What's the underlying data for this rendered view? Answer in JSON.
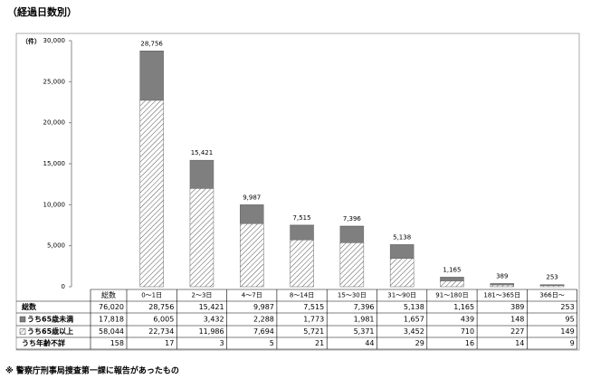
{
  "title": "（経過日数別）",
  "footnote": "※ 警察庁刑事局捜査第一課に報告があったもの",
  "chart_data": {
    "type": "bar",
    "stacked": true,
    "y_unit": "（件）",
    "categories": [
      "0～1日",
      "2～3日",
      "4～7日",
      "8～14日",
      "15～30日",
      "31～90日",
      "91～180日",
      "181～365日",
      "366日～"
    ],
    "total_column": "総数",
    "totals": {
      "name": "総数",
      "values": [
        28756,
        15421,
        9987,
        7515,
        7396,
        5138,
        1165,
        389,
        253
      ],
      "value_labels": [
        "28,756",
        "15,421",
        "9,987",
        "7,515",
        "7,396",
        "5,138",
        "1,165",
        "389",
        "253"
      ],
      "total": 76020,
      "total_label": "76,020"
    },
    "series": [
      {
        "name": "うち65歳未満",
        "color": "#7f7f7f",
        "swatch": true,
        "values": [
          6005,
          3432,
          2288,
          1773,
          1981,
          1657,
          439,
          148,
          95
        ],
        "value_labels": [
          "6,005",
          "3,432",
          "2,288",
          "1,773",
          "1,981",
          "1,657",
          "439",
          "148",
          "95"
        ],
        "total": 17818,
        "total_label": "17,818"
      },
      {
        "name": "うち65歳以上",
        "color": "#ffffff",
        "pattern": "hatch",
        "swatch": true,
        "values": [
          22734,
          11986,
          7694,
          5721,
          5371,
          3452,
          710,
          227,
          149
        ],
        "value_labels": [
          "22,734",
          "11,986",
          "7,694",
          "5,721",
          "5,371",
          "3,452",
          "710",
          "227",
          "149"
        ],
        "total": 58044,
        "total_label": "58,044"
      },
      {
        "name": "うち年齢不詳",
        "color": "#7f7f7f",
        "swatch": false,
        "values": [
          17,
          3,
          5,
          21,
          44,
          29,
          16,
          14,
          9
        ],
        "total": 158
      }
    ],
    "stack_order": [
      1,
      0,
      2
    ],
    "ylim": [
      0,
      30000
    ],
    "yticks": [
      0,
      {
        "value": 5000,
        "label": "5,000"
      },
      {
        "value": 10000,
        "label": "10,000"
      },
      {
        "value": 15000,
        "label": "15,000"
      },
      {
        "value": 20000,
        "label": "20,000"
      },
      {
        "value": 25000,
        "label": "25,000"
      },
      {
        "value": 30000,
        "label": "30,000"
      }
    ]
  }
}
